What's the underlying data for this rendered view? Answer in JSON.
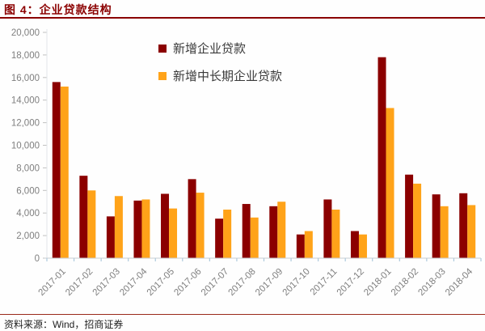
{
  "header": {
    "title": "图 4：企业贷款结构",
    "accent_color": "#8b0000"
  },
  "footer": {
    "source": "资料来源：Wind，招商证券"
  },
  "chart_data": {
    "type": "bar",
    "title": "企业贷款结构",
    "categories": [
      "2017-01",
      "2017-02",
      "2017-03",
      "2017-04",
      "2017-05",
      "2017-06",
      "2017-07",
      "2017-08",
      "2017-09",
      "2017-10",
      "2017-11",
      "2017-12",
      "2018-01",
      "2018-02",
      "2018-03",
      "2018-04"
    ],
    "series": [
      {
        "name": "新增企业贷款",
        "color": "#8b0000",
        "values": [
          15600,
          7300,
          3700,
          5100,
          5700,
          7000,
          3500,
          4800,
          4600,
          2100,
          5200,
          2400,
          17800,
          7400,
          5650,
          5750
        ]
      },
      {
        "name": "新增中长期企业贷款",
        "color": "#ffa319",
        "values": [
          15200,
          6000,
          5500,
          5200,
          4400,
          5800,
          4300,
          3600,
          5000,
          2400,
          4300,
          2100,
          13300,
          6600,
          4600,
          4700
        ]
      }
    ],
    "xlabel": "",
    "ylabel": "",
    "ylim": [
      0,
      20000
    ],
    "ytick_step": 2000,
    "grid": false,
    "legend_position": "inside-top-center",
    "axis_text_color": "#7f7f7f",
    "axis_line_color": "#c8cdd2",
    "x_tick_color": "#aecadd",
    "y_tick_color": "#c0c0c0"
  }
}
